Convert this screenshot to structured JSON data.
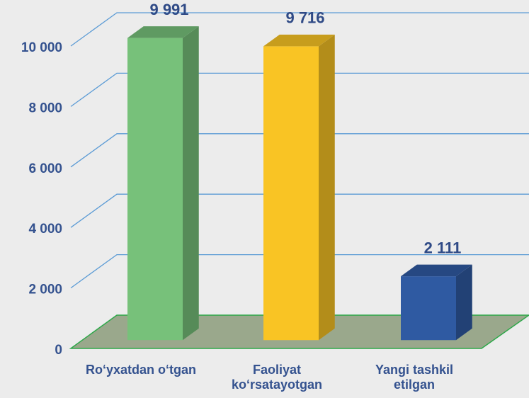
{
  "chart_data": {
    "type": "bar3d",
    "categories": [
      "Ro‘yxatdan o‘tgan",
      "Faoliyat ko‘rsatayotgan",
      "Yangi tashkil etilgan"
    ],
    "values": [
      9991,
      9716,
      2111
    ],
    "value_labels": [
      "9 991",
      "9 716",
      "2 111"
    ],
    "colors": [
      "#77c17a",
      "#f9c424",
      "#2f5aa2"
    ],
    "ylim": [
      0,
      10000
    ],
    "yticks": [
      {
        "value": 0,
        "label": "0"
      },
      {
        "value": 2000,
        "label": "2 000"
      },
      {
        "value": 4000,
        "label": "4 000"
      },
      {
        "value": 6000,
        "label": "6 000"
      },
      {
        "value": 8000,
        "label": "8 000"
      },
      {
        "value": 10000,
        "label": "10 000"
      }
    ],
    "grid": true
  }
}
